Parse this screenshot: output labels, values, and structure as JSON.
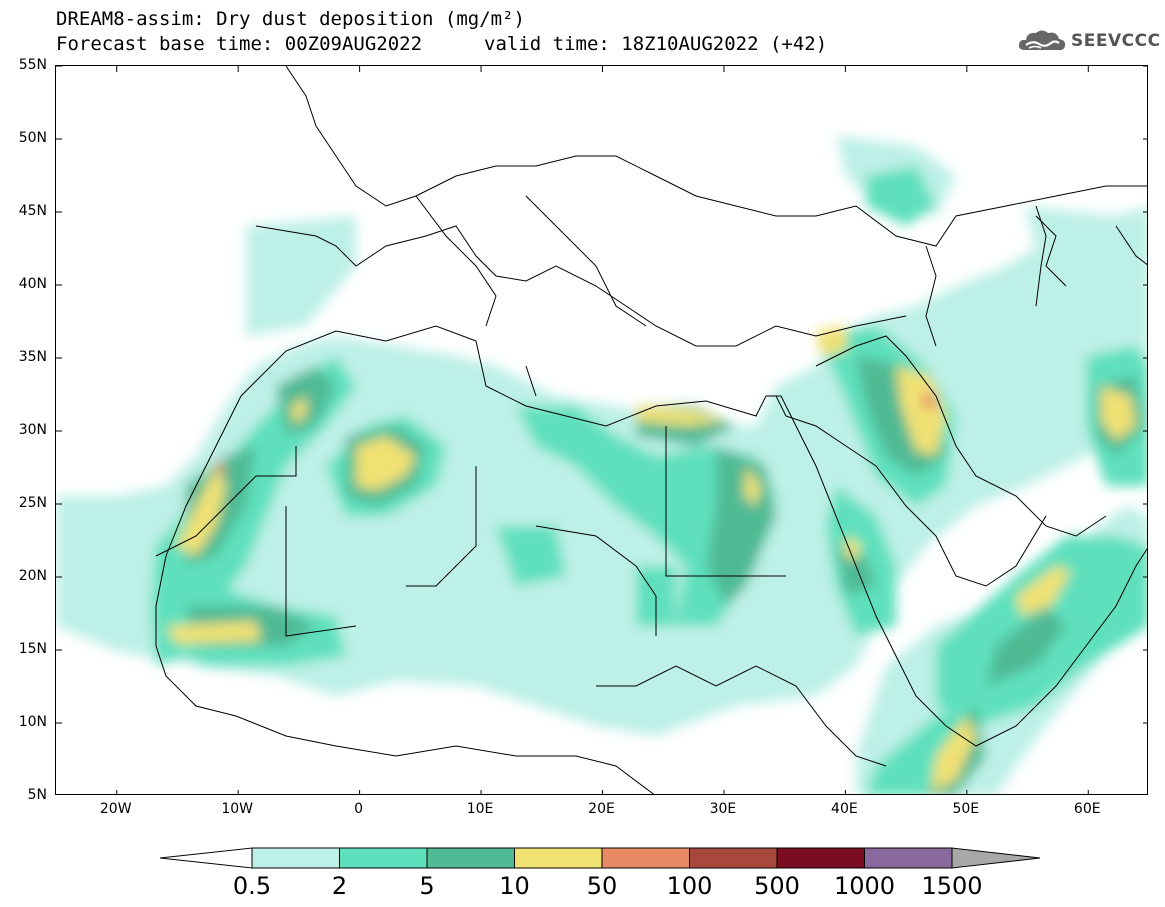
{
  "title": {
    "line1": "DREAM8-assim: Dry dust deposition (mg/m²)",
    "line2a": "Forecast base time: 00Z09AUG2022",
    "line2b": "valid time: 18Z10AUG2022 (+42)"
  },
  "logo": {
    "text": "SEEVCCC",
    "icon": "cloud-icon"
  },
  "axes": {
    "lat_labels": [
      "55N",
      "50N",
      "45N",
      "40N",
      "35N",
      "30N",
      "25N",
      "20N",
      "15N",
      "10N",
      "5N"
    ],
    "lat_values": [
      55,
      50,
      45,
      40,
      35,
      30,
      25,
      20,
      15,
      10,
      5
    ],
    "lon_labels": [
      "20W",
      "10W",
      "0",
      "10E",
      "20E",
      "30E",
      "40E",
      "50E",
      "60E"
    ],
    "lon_values": [
      -20,
      -10,
      0,
      10,
      20,
      30,
      40,
      50,
      60
    ],
    "lon_range": [
      -25,
      65
    ],
    "lat_range": [
      5,
      55
    ]
  },
  "colorbar": {
    "labels": [
      "0.5",
      "2",
      "5",
      "10",
      "50",
      "100",
      "500",
      "1000",
      "1500"
    ],
    "colors": [
      "#bdf0e6",
      "#5fe0bd",
      "#4fba94",
      "#f0e173",
      "#e88a63",
      "#a8473b",
      "#7b0d22",
      "#8a6a9e",
      "#a8a8a8"
    ]
  }
}
